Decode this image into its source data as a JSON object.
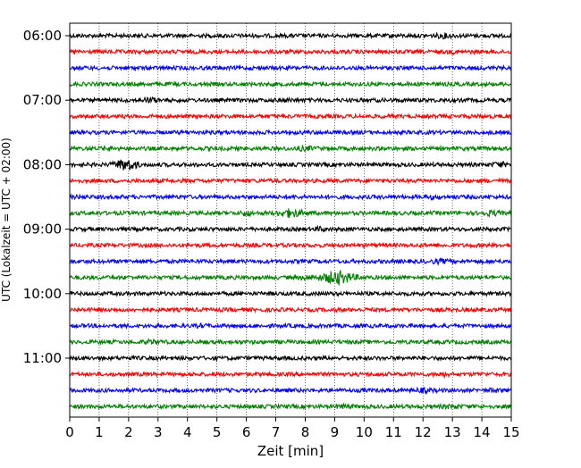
{
  "chart_data": {
    "type": "line",
    "title": "",
    "xlabel": "Zeit  [min]",
    "ylabel": "UTC (Lokalzeit = UTC + 02:00)",
    "xlim": [
      0,
      15
    ],
    "x_ticks": [
      0,
      1,
      2,
      3,
      4,
      5,
      6,
      7,
      8,
      9,
      10,
      11,
      12,
      13,
      14,
      15
    ],
    "x_tick_labels": [
      "0",
      "1",
      "2",
      "3",
      "4",
      "5",
      "6",
      "7",
      "8",
      "9",
      "10",
      "11",
      "12",
      "13",
      "14",
      "15"
    ],
    "grid": "vertical dotted",
    "y_tick_labels": [
      "06:00",
      "07:00",
      "08:00",
      "09:00",
      "10:00",
      "11:00"
    ],
    "y_tick_trace_index": [
      0,
      4,
      8,
      12,
      16,
      20
    ],
    "trace_colors": [
      "#000000",
      "#ff0000",
      "#0000ff",
      "#008000"
    ],
    "traces_count_note": "",
    "traces": [
      {
        "color": "#000000",
        "events": [
          [
            12.7,
            0.25,
            1.6
          ]
        ]
      },
      {
        "color": "#ff0000",
        "events": [
          [
            13.0,
            0.2,
            1.3
          ]
        ]
      },
      {
        "color": "#0000ff",
        "events": []
      },
      {
        "color": "#008000",
        "events": []
      },
      {
        "color": "#000000",
        "events": [
          [
            2.7,
            0.3,
            1.6
          ],
          [
            7.4,
            0.2,
            1.3
          ]
        ]
      },
      {
        "color": "#ff0000",
        "events": []
      },
      {
        "color": "#0000ff",
        "events": []
      },
      {
        "color": "#008000",
        "events": [
          [
            1.3,
            0.2,
            1.4
          ],
          [
            8.0,
            0.35,
            1.5
          ]
        ]
      },
      {
        "color": "#000000",
        "events": [
          [
            1.9,
            0.35,
            3.2
          ],
          [
            14.6,
            0.2,
            1.8
          ]
        ]
      },
      {
        "color": "#ff0000",
        "events": []
      },
      {
        "color": "#0000ff",
        "events": [
          [
            0.3,
            0.2,
            1.4
          ],
          [
            12.3,
            0.3,
            1.4
          ]
        ]
      },
      {
        "color": "#008000",
        "events": [
          [
            6.0,
            0.15,
            2.0
          ],
          [
            7.5,
            0.4,
            2.4
          ],
          [
            14.3,
            0.3,
            1.7
          ]
        ]
      },
      {
        "color": "#000000",
        "events": [
          [
            8.5,
            0.2,
            1.5
          ]
        ]
      },
      {
        "color": "#ff0000",
        "events": []
      },
      {
        "color": "#0000ff",
        "events": [
          [
            12.6,
            0.3,
            1.5
          ]
        ]
      },
      {
        "color": "#008000",
        "events": [
          [
            9.1,
            0.5,
            3.6
          ],
          [
            8.1,
            0.3,
            1.5
          ]
        ]
      },
      {
        "color": "#000000",
        "events": []
      },
      {
        "color": "#ff0000",
        "events": []
      },
      {
        "color": "#0000ff",
        "events": [
          [
            4.5,
            0.2,
            1.3
          ]
        ]
      },
      {
        "color": "#008000",
        "events": [
          [
            2.8,
            0.25,
            1.6
          ]
        ]
      },
      {
        "color": "#000000",
        "events": []
      },
      {
        "color": "#ff0000",
        "events": [
          [
            12.7,
            0.2,
            1.5
          ]
        ]
      },
      {
        "color": "#0000ff",
        "events": [
          [
            12.0,
            0.3,
            1.5
          ],
          [
            14.4,
            0.2,
            1.4
          ]
        ]
      },
      {
        "color": "#008000",
        "events": [
          [
            9.3,
            0.3,
            1.4
          ],
          [
            13.0,
            0.3,
            1.4
          ]
        ]
      }
    ]
  }
}
